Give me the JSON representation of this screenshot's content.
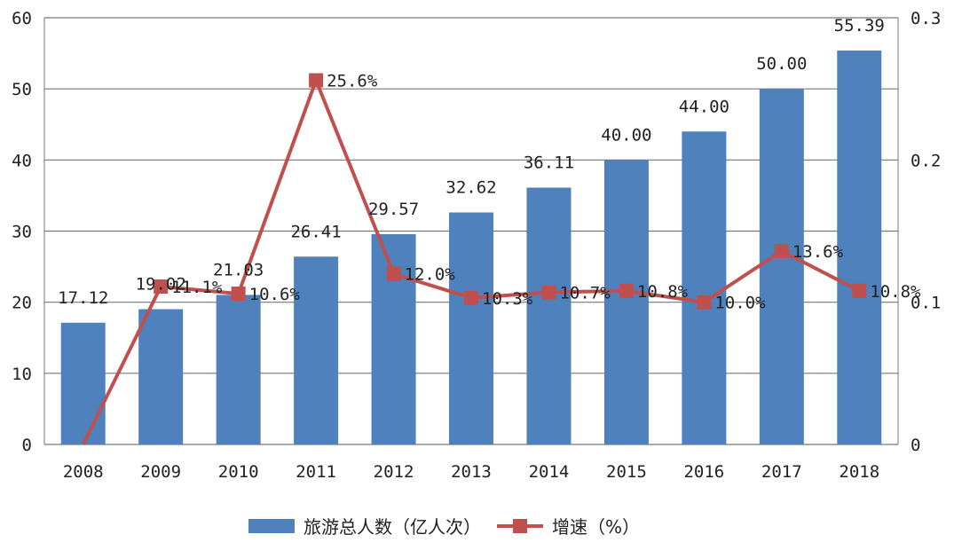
{
  "chart_data": {
    "type": "bar+line",
    "categories": [
      "2008",
      "2009",
      "2010",
      "2011",
      "2012",
      "2013",
      "2014",
      "2015",
      "2016",
      "2017",
      "2018"
    ],
    "series": [
      {
        "name": "旅游总人数（亿人次）",
        "type": "bar",
        "axis": "left",
        "color": "#4f81bd",
        "values": [
          17.12,
          19.02,
          21.03,
          26.41,
          29.57,
          32.62,
          36.11,
          40.0,
          44.0,
          50.0,
          55.39
        ],
        "labels": [
          "17.12",
          "19.02",
          "21.03",
          "26.41",
          "29.57",
          "32.62",
          "36.11",
          "40.00",
          "44.00",
          "50.00",
          "55.39"
        ]
      },
      {
        "name": "增速（%）",
        "type": "line",
        "axis": "right",
        "color": "#c0504d",
        "values": [
          0,
          0.111,
          0.106,
          0.256,
          0.12,
          0.103,
          0.107,
          0.108,
          0.1,
          0.136,
          0.108
        ],
        "labels": [
          "",
          "11.1%",
          "10.6%",
          "25.6%",
          "12.0%",
          "10.3%",
          "10.7%",
          "10.8%",
          "10.0%",
          "13.6%",
          "10.8%"
        ]
      }
    ],
    "y_left": {
      "lim": [
        0,
        60
      ],
      "ticks": [
        "0",
        "10",
        "20",
        "30",
        "40",
        "50",
        "60"
      ]
    },
    "y_right": {
      "lim": [
        0,
        0.3
      ],
      "ticks": [
        "0",
        "0.1",
        "0.2",
        "0.3"
      ]
    },
    "grid": true,
    "legend": "bottom"
  }
}
